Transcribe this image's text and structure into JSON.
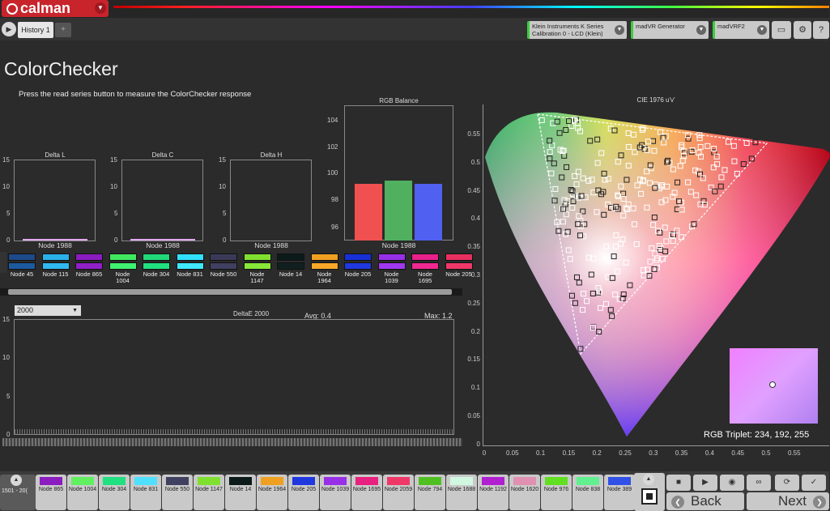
{
  "app": {
    "name": "calman"
  },
  "tabs": {
    "history": "History 1"
  },
  "devices": {
    "meter": "Klein Instruments K Series",
    "meter_cal": "Calibration 0 - LCD (Klein)",
    "generator": "madVR Generator",
    "display": "madVRF2"
  },
  "page": {
    "title": "ColorChecker",
    "subtitle": "Press the read series button to measure the ColorChecker response"
  },
  "colors": {
    "accent": "#c8242c",
    "device_ok": "#3bcf3b"
  },
  "charts": {
    "delta_l": {
      "title": "Delta L",
      "node": "Node 1988",
      "yticks": [
        "15",
        "10",
        "5",
        "0"
      ]
    },
    "delta_c": {
      "title": "Delta C",
      "node": "Node 1988",
      "yticks": [
        "15",
        "10",
        "5",
        "0"
      ]
    },
    "delta_h": {
      "title": "Delta H",
      "node": "Node 1988",
      "yticks": [
        "15",
        "10",
        "5",
        "0"
      ]
    },
    "rgb_balance": {
      "title": "RGB Balance",
      "node": "Node 1988",
      "yticks": [
        "104",
        "102",
        "100",
        "98",
        "96"
      ]
    },
    "deltae": {
      "title": "DeltaE 2000",
      "avg": "Avg: 0.4",
      "max": "Max: 1.2",
      "yticks": [
        "15",
        "10",
        "5",
        "0"
      ],
      "dropdown": "2000"
    },
    "cie": {
      "title": "CIE 1976 u'v'",
      "rgb_triplet": "RGB Triplet: 234, 192, 255",
      "yticks": [
        "0.55",
        "0.5",
        "0.45",
        "0.4",
        "0.35",
        "0.3",
        "0.25",
        "0.2",
        "0.15",
        "0.1",
        "0.05",
        "0"
      ],
      "xticks": [
        "0",
        "0.05",
        "0.1",
        "0.15",
        "0.2",
        "0.25",
        "0.3",
        "0.35",
        "0.4",
        "0.45",
        "0.5",
        "0.55"
      ]
    }
  },
  "chart_data": [
    {
      "type": "bar",
      "title": "Delta L",
      "categories": [
        "Node 1988"
      ],
      "values": [
        0.3
      ],
      "ylim": [
        0,
        15
      ]
    },
    {
      "type": "bar",
      "title": "Delta C",
      "categories": [
        "Node 1988"
      ],
      "values": [
        0.2
      ],
      "ylim": [
        0,
        15
      ]
    },
    {
      "type": "bar",
      "title": "Delta H",
      "categories": [
        "Node 1988"
      ],
      "values": [
        0
      ],
      "ylim": [
        0,
        15
      ]
    },
    {
      "type": "bar",
      "title": "RGB Balance",
      "categories": [
        "Node 1988"
      ],
      "series": [
        {
          "name": "R",
          "values": [
            99.3
          ],
          "color": "#f05050"
        },
        {
          "name": "G",
          "values": [
            99.6
          ],
          "color": "#50b060"
        },
        {
          "name": "B",
          "values": [
            99.3
          ],
          "color": "#5060f0"
        }
      ],
      "ylim": [
        95,
        105
      ]
    }
  ],
  "swatches": [
    {
      "label": "Node 45",
      "a": "#1c4a8a",
      "b": "#1c5aa0"
    },
    {
      "label": "Node 115",
      "a": "#2ab0e8",
      "b": "#30b8f0"
    },
    {
      "label": "Node 865",
      "a": "#8a1cc0",
      "b": "#9020c8"
    },
    {
      "label": "Node 1004",
      "a": "#40e860",
      "b": "#40f070"
    },
    {
      "label": "Node 304",
      "a": "#20d878",
      "b": "#20e080"
    },
    {
      "label": "Node 831",
      "a": "#30e0ff",
      "b": "#40e8ff"
    },
    {
      "label": "Node 550",
      "a": "#3a3a58",
      "b": "#404060"
    },
    {
      "label": "Node 1147",
      "a": "#80e030",
      "b": "#88e838"
    },
    {
      "label": "Node 14",
      "a": "#0c1a1a",
      "b": "#102020"
    },
    {
      "label": "Node 1964",
      "a": "#f0a020",
      "b": "#f8a828"
    },
    {
      "label": "Node 205",
      "a": "#1830d8",
      "b": "#2038e0"
    },
    {
      "label": "Node 1039",
      "a": "#9830e8",
      "b": "#a038f0"
    },
    {
      "label": "Node 1695",
      "a": "#e8208a",
      "b": "#f02890"
    },
    {
      "label": "Node 205",
      "a": "#e83060",
      "b": "#f03868"
    }
  ],
  "bottom": {
    "range": "1501 - 20(",
    "swatches": [
      {
        "label": "Node 865",
        "c": "#8a1cc0"
      },
      {
        "label": "Node 1004",
        "c": "#60f060"
      },
      {
        "label": "Node 304",
        "c": "#20e080"
      },
      {
        "label": "Node 831",
        "c": "#50e0ff"
      },
      {
        "label": "Node 550",
        "c": "#404060"
      },
      {
        "label": "Node 1147",
        "c": "#80e030"
      },
      {
        "label": "Node 14",
        "c": "#0c1a1a"
      },
      {
        "label": "Node 1964",
        "c": "#f0a020"
      },
      {
        "label": "Node 205",
        "c": "#2038e0"
      },
      {
        "label": "Node 1039",
        "c": "#9830e8"
      },
      {
        "label": "Node 1695",
        "c": "#e82080"
      },
      {
        "label": "Node 2059",
        "c": "#f03868"
      },
      {
        "label": "Node 794",
        "c": "#50c020"
      },
      {
        "label": "Node 1688",
        "c": "#d0f8e0"
      },
      {
        "label": "Node 1192",
        "c": "#b020d0"
      },
      {
        "label": "Node 1620",
        "c": "#e090b0"
      },
      {
        "label": "Node 976",
        "c": "#60e020"
      },
      {
        "label": "Node 838",
        "c": "#60f090"
      },
      {
        "label": "Node 389",
        "c": "#3050e8"
      }
    ],
    "back": "Back",
    "next": "Next"
  }
}
